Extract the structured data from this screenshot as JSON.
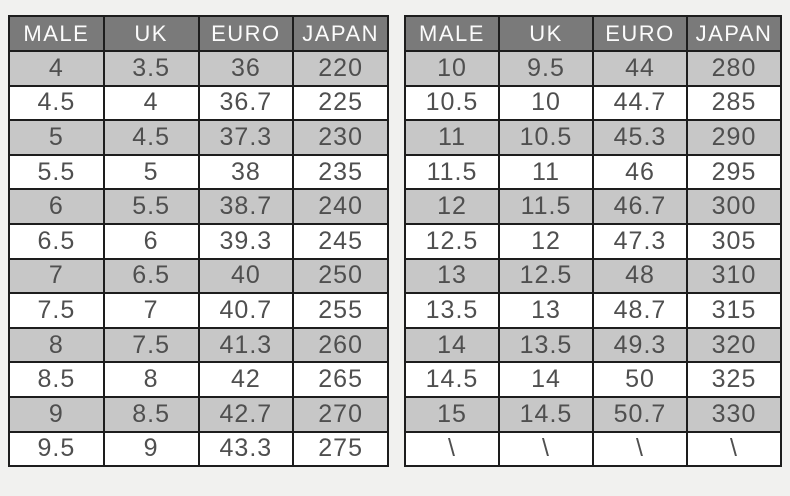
{
  "page": {
    "background": "#f1f1ef"
  },
  "colors": {
    "header_bg": "#7a7a7a",
    "header_text": "#fbfbfb",
    "row_alt_bg": "#c7c7c7",
    "row_bg": "#ffffff",
    "cell_text": "#4f4f4f",
    "border": "#1d1d1d"
  },
  "tables": [
    {
      "name": "size-chart-left",
      "headers": [
        "MALE",
        "UK",
        "EURO",
        "JAPAN"
      ],
      "rows": [
        [
          "4",
          "3.5",
          "36",
          "220"
        ],
        [
          "4.5",
          "4",
          "36.7",
          "225"
        ],
        [
          "5",
          "4.5",
          "37.3",
          "230"
        ],
        [
          "5.5",
          "5",
          "38",
          "235"
        ],
        [
          "6",
          "5.5",
          "38.7",
          "240"
        ],
        [
          "6.5",
          "6",
          "39.3",
          "245"
        ],
        [
          "7",
          "6.5",
          "40",
          "250"
        ],
        [
          "7.5",
          "7",
          "40.7",
          "255"
        ],
        [
          "8",
          "7.5",
          "41.3",
          "260"
        ],
        [
          "8.5",
          "8",
          "42",
          "265"
        ],
        [
          "9",
          "8.5",
          "42.7",
          "270"
        ],
        [
          "9.5",
          "9",
          "43.3",
          "275"
        ]
      ]
    },
    {
      "name": "size-chart-right",
      "headers": [
        "MALE",
        "UK",
        "EURO",
        "JAPAN"
      ],
      "rows": [
        [
          "10",
          "9.5",
          "44",
          "280"
        ],
        [
          "10.5",
          "10",
          "44.7",
          "285"
        ],
        [
          "11",
          "10.5",
          "45.3",
          "290"
        ],
        [
          "11.5",
          "11",
          "46",
          "295"
        ],
        [
          "12",
          "11.5",
          "46.7",
          "300"
        ],
        [
          "12.5",
          "12",
          "47.3",
          "305"
        ],
        [
          "13",
          "12.5",
          "48",
          "310"
        ],
        [
          "13.5",
          "13",
          "48.7",
          "315"
        ],
        [
          "14",
          "13.5",
          "49.3",
          "320"
        ],
        [
          "14.5",
          "14",
          "50",
          "325"
        ],
        [
          "15",
          "14.5",
          "50.7",
          "330"
        ],
        [
          "\\",
          "\\",
          "\\",
          "\\"
        ]
      ]
    }
  ],
  "chart_data": [
    {
      "type": "table",
      "title": "Men's shoe size conversion chart (sizes 4-9.5)",
      "columns": [
        "MALE",
        "UK",
        "EURO",
        "JAPAN"
      ],
      "rows": [
        [
          "4",
          "3.5",
          "36",
          "220"
        ],
        [
          "4.5",
          "4",
          "36.7",
          "225"
        ],
        [
          "5",
          "4.5",
          "37.3",
          "230"
        ],
        [
          "5.5",
          "5",
          "38",
          "235"
        ],
        [
          "6",
          "5.5",
          "38.7",
          "240"
        ],
        [
          "6.5",
          "6",
          "39.3",
          "245"
        ],
        [
          "7",
          "6.5",
          "40",
          "250"
        ],
        [
          "7.5",
          "7",
          "40.7",
          "255"
        ],
        [
          "8",
          "7.5",
          "41.3",
          "260"
        ],
        [
          "8.5",
          "8",
          "42",
          "265"
        ],
        [
          "9",
          "8.5",
          "42.7",
          "270"
        ],
        [
          "9.5",
          "9",
          "43.3",
          "275"
        ]
      ]
    },
    {
      "type": "table",
      "title": "Men's shoe size conversion chart (sizes 10-15)",
      "columns": [
        "MALE",
        "UK",
        "EURO",
        "JAPAN"
      ],
      "rows": [
        [
          "10",
          "9.5",
          "44",
          "280"
        ],
        [
          "10.5",
          "10",
          "44.7",
          "285"
        ],
        [
          "11",
          "10.5",
          "45.3",
          "290"
        ],
        [
          "11.5",
          "11",
          "46",
          "295"
        ],
        [
          "12",
          "11.5",
          "46.7",
          "300"
        ],
        [
          "12.5",
          "12",
          "47.3",
          "305"
        ],
        [
          "13",
          "12.5",
          "48",
          "310"
        ],
        [
          "13.5",
          "13",
          "48.7",
          "315"
        ],
        [
          "14",
          "13.5",
          "49.3",
          "320"
        ],
        [
          "14.5",
          "14",
          "50",
          "325"
        ],
        [
          "15",
          "14.5",
          "50.7",
          "330"
        ],
        [
          "\\",
          "\\",
          "\\",
          "\\"
        ]
      ]
    }
  ]
}
